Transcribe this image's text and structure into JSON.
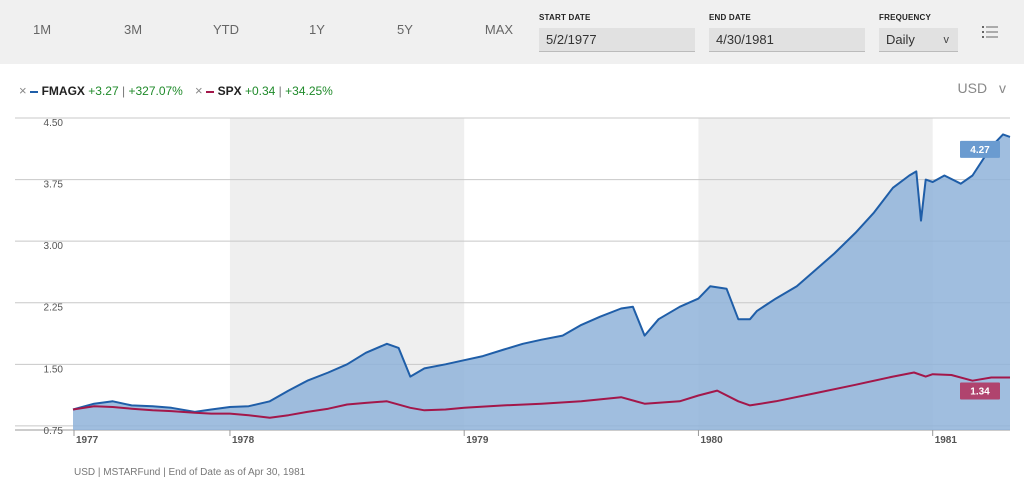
{
  "toolbar": {
    "ranges": [
      "1M",
      "3M",
      "YTD",
      "1Y",
      "5Y",
      "MAX"
    ],
    "start_label": "START DATE",
    "start_value": "5/2/1977",
    "end_label": "END DATE",
    "end_value": "4/30/1981",
    "freq_label": "FREQUENCY",
    "freq_value": "Daily",
    "menu_icon": "list-menu-icon"
  },
  "legend": {
    "fmagx": {
      "name": "FMAGX",
      "change": "+3.27",
      "sep": "|",
      "pct": "+327.07%",
      "color": "#1f5ea8"
    },
    "spx": {
      "name": "SPX",
      "change": "+0.34",
      "sep": "|",
      "pct": "+34.25%",
      "color": "#a3174a"
    }
  },
  "currency": "USD",
  "footer": "USD | MSTARFund | End of Date as of Apr 30, 1981",
  "chart_data": {
    "type": "area",
    "y_ticks": [
      "4.50",
      "3.75",
      "3.00",
      "2.25",
      "1.50",
      "0.75"
    ],
    "x_ticks": [
      "1977",
      "1978",
      "1979",
      "1980",
      "1981"
    ],
    "ylim": [
      0.7,
      4.5
    ],
    "xlim": [
      1977.33,
      1981.33
    ],
    "grid": true,
    "shaded_years": [
      [
        1978.0,
        1979.0
      ],
      [
        1980.0,
        1981.0
      ]
    ],
    "series": [
      {
        "name": "FMAGX",
        "color": "#1f5ea8",
        "fill": "#8fb3d9",
        "end_label": "4.27",
        "points": [
          [
            1977.33,
            0.95
          ],
          [
            1977.42,
            1.02
          ],
          [
            1977.5,
            1.05
          ],
          [
            1977.58,
            1.0
          ],
          [
            1977.67,
            0.99
          ],
          [
            1977.75,
            0.97
          ],
          [
            1977.85,
            0.92
          ],
          [
            1977.92,
            0.95
          ],
          [
            1978.0,
            0.98
          ],
          [
            1978.08,
            0.99
          ],
          [
            1978.17,
            1.05
          ],
          [
            1978.25,
            1.18
          ],
          [
            1978.33,
            1.3
          ],
          [
            1978.42,
            1.4
          ],
          [
            1978.5,
            1.5
          ],
          [
            1978.58,
            1.64
          ],
          [
            1978.67,
            1.75
          ],
          [
            1978.72,
            1.7
          ],
          [
            1978.77,
            1.35
          ],
          [
            1978.83,
            1.45
          ],
          [
            1978.92,
            1.5
          ],
          [
            1979.0,
            1.55
          ],
          [
            1979.08,
            1.6
          ],
          [
            1979.17,
            1.68
          ],
          [
            1979.25,
            1.75
          ],
          [
            1979.33,
            1.8
          ],
          [
            1979.42,
            1.85
          ],
          [
            1979.5,
            1.98
          ],
          [
            1979.58,
            2.08
          ],
          [
            1979.67,
            2.18
          ],
          [
            1979.72,
            2.2
          ],
          [
            1979.77,
            1.85
          ],
          [
            1979.83,
            2.05
          ],
          [
            1979.92,
            2.2
          ],
          [
            1980.0,
            2.3
          ],
          [
            1980.05,
            2.45
          ],
          [
            1980.12,
            2.42
          ],
          [
            1980.17,
            2.05
          ],
          [
            1980.22,
            2.05
          ],
          [
            1980.25,
            2.15
          ],
          [
            1980.33,
            2.3
          ],
          [
            1980.42,
            2.45
          ],
          [
            1980.5,
            2.65
          ],
          [
            1980.58,
            2.85
          ],
          [
            1980.67,
            3.1
          ],
          [
            1980.75,
            3.35
          ],
          [
            1980.83,
            3.65
          ],
          [
            1980.9,
            3.8
          ],
          [
            1980.93,
            3.85
          ],
          [
            1980.95,
            3.25
          ],
          [
            1980.97,
            3.75
          ],
          [
            1981.0,
            3.72
          ],
          [
            1981.05,
            3.8
          ],
          [
            1981.12,
            3.7
          ],
          [
            1981.17,
            3.8
          ],
          [
            1981.25,
            4.15
          ],
          [
            1981.3,
            4.3
          ],
          [
            1981.33,
            4.27
          ]
        ]
      },
      {
        "name": "SPX",
        "color": "#a3174a",
        "end_label": "1.34",
        "points": [
          [
            1977.33,
            0.95
          ],
          [
            1977.42,
            0.99
          ],
          [
            1977.5,
            0.98
          ],
          [
            1977.58,
            0.96
          ],
          [
            1977.67,
            0.94
          ],
          [
            1977.75,
            0.93
          ],
          [
            1977.85,
            0.91
          ],
          [
            1977.92,
            0.9
          ],
          [
            1978.0,
            0.9
          ],
          [
            1978.08,
            0.88
          ],
          [
            1978.17,
            0.85
          ],
          [
            1978.25,
            0.88
          ],
          [
            1978.33,
            0.92
          ],
          [
            1978.42,
            0.96
          ],
          [
            1978.5,
            1.01
          ],
          [
            1978.58,
            1.03
          ],
          [
            1978.67,
            1.05
          ],
          [
            1978.77,
            0.97
          ],
          [
            1978.83,
            0.94
          ],
          [
            1978.92,
            0.95
          ],
          [
            1979.0,
            0.97
          ],
          [
            1979.17,
            1.0
          ],
          [
            1979.33,
            1.02
          ],
          [
            1979.5,
            1.05
          ],
          [
            1979.67,
            1.1
          ],
          [
            1979.77,
            1.02
          ],
          [
            1979.92,
            1.05
          ],
          [
            1980.0,
            1.12
          ],
          [
            1980.08,
            1.18
          ],
          [
            1980.17,
            1.05
          ],
          [
            1980.22,
            1.0
          ],
          [
            1980.33,
            1.05
          ],
          [
            1980.5,
            1.15
          ],
          [
            1980.67,
            1.25
          ],
          [
            1980.83,
            1.35
          ],
          [
            1980.92,
            1.4
          ],
          [
            1980.97,
            1.35
          ],
          [
            1981.0,
            1.38
          ],
          [
            1981.08,
            1.37
          ],
          [
            1981.17,
            1.3
          ],
          [
            1981.25,
            1.34
          ],
          [
            1981.33,
            1.34
          ]
        ]
      }
    ]
  }
}
